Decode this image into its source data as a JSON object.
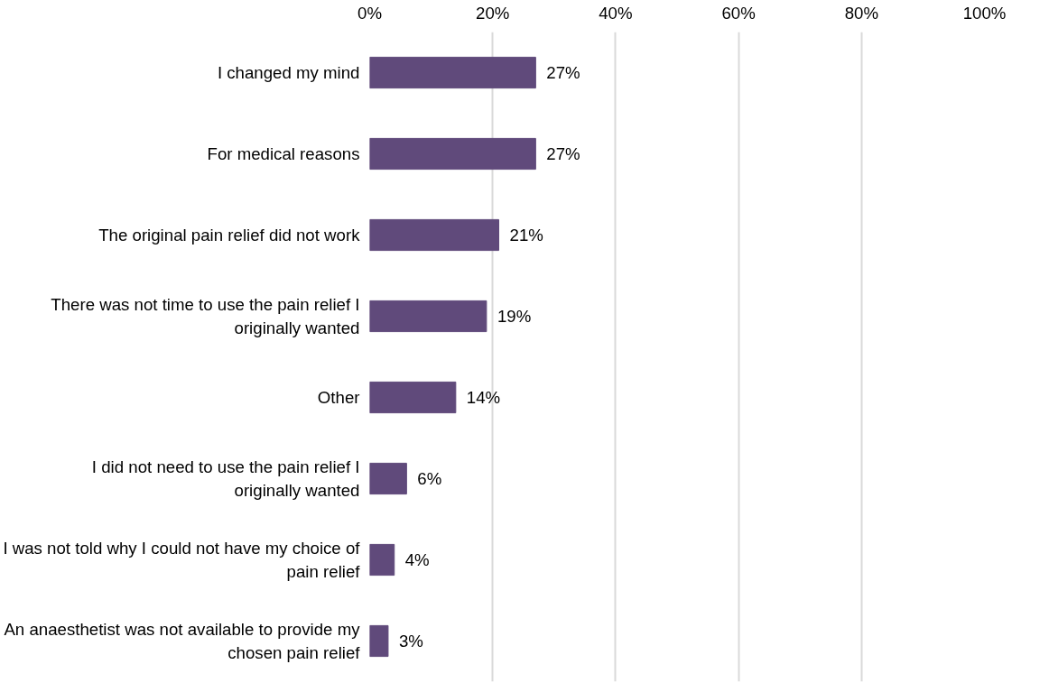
{
  "chart_data": {
    "type": "bar",
    "orientation": "horizontal",
    "categories": [
      "I changed my mind",
      "For medical reasons",
      "The original pain relief did not work",
      "There was not time to use the pain relief I originally wanted",
      "Other",
      "I did not need to use the pain relief I originally wanted",
      "I was not told why I could not have my choice of pain relief",
      "An anaesthetist was not available to provide my chosen pain relief"
    ],
    "values": [
      27,
      27,
      21,
      19,
      14,
      6,
      4,
      3
    ],
    "value_labels": [
      "27%",
      "27%",
      "21%",
      "19%",
      "14%",
      "6%",
      "4%",
      "3%"
    ],
    "color": "#604a7b",
    "xlim": [
      0,
      100
    ],
    "xticks": [
      {
        "value": 0,
        "label": "0%"
      },
      {
        "value": 20,
        "label": "20%"
      },
      {
        "value": 40,
        "label": "40%"
      },
      {
        "value": 60,
        "label": "60%"
      },
      {
        "value": 80,
        "label": "80%"
      },
      {
        "value": 100,
        "label": "100%"
      }
    ],
    "grid": "x"
  }
}
